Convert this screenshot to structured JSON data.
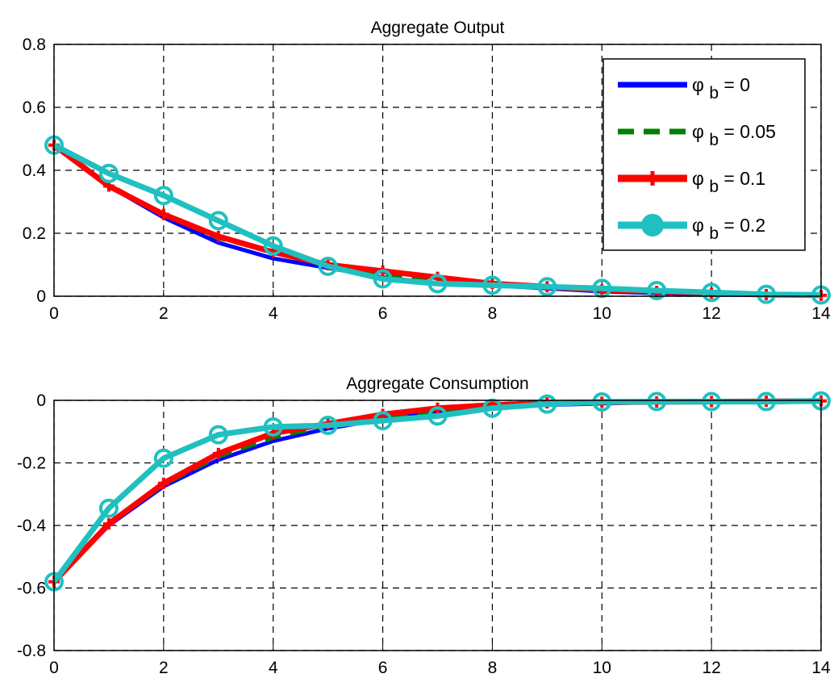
{
  "chart_data": [
    {
      "type": "line",
      "title": "Aggregate Output",
      "xlabel": "",
      "ylabel": "",
      "xlim": [
        0,
        14
      ],
      "ylim": [
        0,
        0.8
      ],
      "xticks": [
        "0",
        "2",
        "4",
        "6",
        "8",
        "10",
        "12",
        "14"
      ],
      "yticks": [
        "0",
        "0.2",
        "0.4",
        "0.6",
        "0.8"
      ],
      "grid": true,
      "legend_position": "top-right",
      "x": [
        0,
        1,
        2,
        3,
        4,
        5,
        6,
        7,
        8,
        9,
        10,
        11,
        12,
        13,
        14
      ],
      "series": [
        {
          "name": "φ b = 0",
          "color": "#0000ff",
          "style": "solid",
          "marker": "none",
          "values": [
            0.48,
            0.35,
            0.25,
            0.17,
            0.12,
            0.09,
            0.06,
            0.04,
            0.035,
            0.025,
            0.015,
            0.01,
            0.005,
            0.004,
            0.003
          ]
        },
        {
          "name": "φ b = 0.05",
          "color": "#008000",
          "style": "dashed",
          "marker": "none",
          "values": [
            0.48,
            0.355,
            0.258,
            0.185,
            0.14,
            0.1,
            0.07,
            0.05,
            0.038,
            0.028,
            0.018,
            0.012,
            0.008,
            0.006,
            0.004
          ]
        },
        {
          "name": "φ b = 0.1",
          "color": "#ff0000",
          "style": "solid",
          "marker": "plus",
          "values": [
            0.48,
            0.35,
            0.26,
            0.19,
            0.14,
            0.1,
            0.08,
            0.06,
            0.04,
            0.03,
            0.02,
            0.015,
            0.01,
            0.005,
            0.003
          ]
        },
        {
          "name": "φ b = 0.2",
          "color": "#20c0c0",
          "style": "solid",
          "marker": "circle",
          "values": [
            0.48,
            0.39,
            0.32,
            0.24,
            0.16,
            0.095,
            0.055,
            0.04,
            0.035,
            0.03,
            0.025,
            0.018,
            0.012,
            0.006,
            0.004
          ]
        }
      ]
    },
    {
      "type": "line",
      "title": "Aggregate Consumption",
      "xlabel": "",
      "ylabel": "",
      "xlim": [
        0,
        14
      ],
      "ylim": [
        -0.8,
        0
      ],
      "xticks": [
        "0",
        "2",
        "4",
        "6",
        "8",
        "10",
        "12",
        "14"
      ],
      "yticks": [
        "-0.8",
        "-0.6",
        "-0.4",
        "-0.2",
        "0"
      ],
      "grid": true,
      "x": [
        0,
        1,
        2,
        3,
        4,
        5,
        6,
        7,
        8,
        9,
        10,
        11,
        12,
        13,
        14
      ],
      "series": [
        {
          "color": "#0000ff",
          "style": "solid",
          "marker": "none",
          "values": [
            -0.58,
            -0.4,
            -0.275,
            -0.19,
            -0.13,
            -0.09,
            -0.06,
            -0.04,
            -0.025,
            -0.015,
            -0.01,
            -0.006,
            -0.004,
            -0.003,
            -0.002
          ]
        },
        {
          "color": "#008000",
          "style": "dashed",
          "marker": "none",
          "values": [
            -0.58,
            -0.395,
            -0.27,
            -0.18,
            -0.12,
            -0.08,
            -0.055,
            -0.035,
            -0.02,
            -0.012,
            -0.008,
            -0.005,
            -0.004,
            -0.003,
            -0.002
          ]
        },
        {
          "color": "#ff0000",
          "style": "solid",
          "marker": "plus",
          "values": [
            -0.58,
            -0.395,
            -0.265,
            -0.17,
            -0.105,
            -0.075,
            -0.045,
            -0.025,
            -0.015,
            -0.008,
            -0.006,
            -0.005,
            -0.004,
            -0.003,
            -0.002
          ]
        },
        {
          "color": "#20c0c0",
          "style": "solid",
          "marker": "circle",
          "values": [
            -0.58,
            -0.345,
            -0.185,
            -0.11,
            -0.085,
            -0.08,
            -0.065,
            -0.05,
            -0.025,
            -0.012,
            -0.005,
            -0.004,
            -0.004,
            -0.004,
            -0.002
          ]
        }
      ]
    }
  ]
}
